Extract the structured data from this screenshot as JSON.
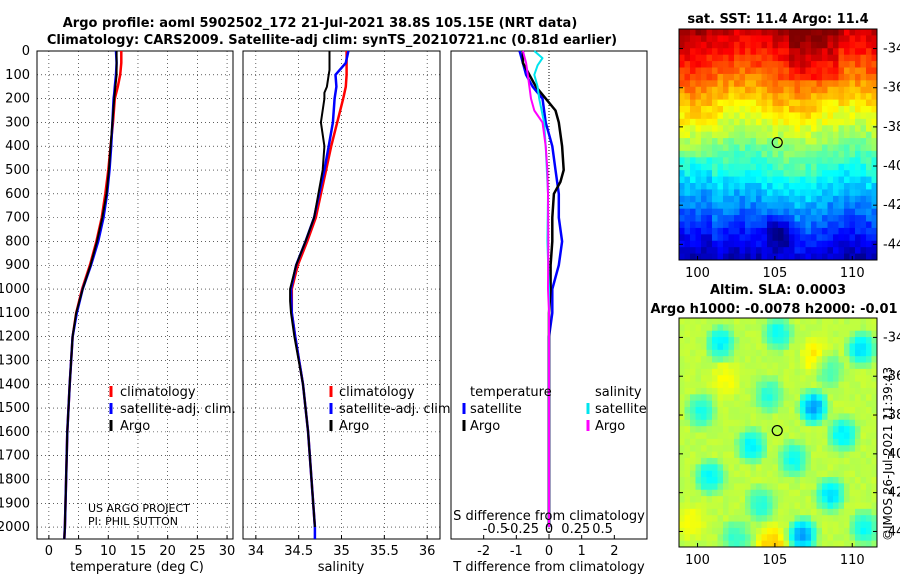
{
  "title": {
    "line1": "Argo profile: aoml 5902502_172 21-Jul-2021 38.8S 105.15E (NRT data)",
    "line2": "Climatology: CARS2009. Satellite-adj clim: synTS_20210721.nc (0.81d earlier)"
  },
  "depth_ticks": [
    "0",
    "100",
    "200",
    "300",
    "400",
    "500",
    "600",
    "700",
    "800",
    "900",
    "1000",
    "1100",
    "1200",
    "1300",
    "1400",
    "1500",
    "1600",
    "1700",
    "1800",
    "1900",
    "2000"
  ],
  "credits": {
    "line1": "US ARGO PROJECT",
    "line2": "PI: PHIL SUTTON"
  },
  "stamp": "©IMOS 26-Jul-2021 11:39:43",
  "colors": {
    "climatology": "#ff0000",
    "satellite_adj": "#0000ff",
    "argo": "#000000",
    "sat_temp": "#0000ff",
    "sat_sal": "#00e5ee",
    "argo_sal": "#ff00ff"
  },
  "chart_data": [
    {
      "type": "line",
      "name": "temperature-profile",
      "xlabel": "temperature (deg C)",
      "ylabel": "depth (m)",
      "xlim": [
        -2,
        31
      ],
      "ylim": [
        2050,
        0
      ],
      "xticks": [
        "0",
        "5",
        "10",
        "15",
        "20",
        "25",
        "30"
      ],
      "xtick_values": [
        0,
        5,
        10,
        15,
        20,
        25,
        30
      ],
      "legend": [
        "climatology",
        "satellite-adj. clim.",
        "Argo"
      ],
      "legend_position": "lower-right",
      "series": [
        {
          "name": "climatology",
          "depth": [
            0,
            50,
            100,
            150,
            180,
            200,
            300,
            400,
            500,
            600,
            700,
            800,
            900,
            1000,
            1100,
            1200,
            1400,
            1600,
            1800,
            2000,
            2050
          ],
          "values": [
            12.2,
            12.2,
            12.0,
            11.6,
            11.3,
            11.1,
            10.8,
            10.4,
            10.0,
            9.5,
            8.9,
            8.0,
            6.9,
            5.6,
            4.6,
            4.0,
            3.5,
            3.1,
            2.9,
            2.7,
            2.6
          ]
        },
        {
          "name": "satellite-adj. clim.",
          "depth": [
            0,
            50,
            100,
            150,
            180,
            200,
            300,
            400,
            500,
            600,
            700,
            800,
            900,
            1000,
            1100,
            1200,
            1400,
            1600,
            1800,
            2000,
            2050
          ],
          "values": [
            11.3,
            11.4,
            11.3,
            11.1,
            11.0,
            10.9,
            10.7,
            10.5,
            10.2,
            9.8,
            9.2,
            8.3,
            7.1,
            5.7,
            4.7,
            4.0,
            3.5,
            3.1,
            2.9,
            2.7,
            2.6
          ]
        },
        {
          "name": "Argo",
          "depth": [
            0,
            100,
            200,
            300,
            400,
            500,
            600,
            700,
            800,
            900,
            1000,
            1100,
            1200,
            1400,
            1600,
            1800,
            2000,
            2050
          ],
          "values": [
            11.4,
            11.4,
            11.0,
            10.7,
            10.4,
            10.1,
            9.7,
            9.0,
            8.1,
            7.0,
            5.7,
            4.6,
            4.0,
            3.5,
            3.1,
            2.9,
            2.7,
            2.6
          ]
        }
      ]
    },
    {
      "type": "line",
      "name": "salinity-profile",
      "xlabel": "salinity",
      "ylabel": "depth (m)",
      "xlim": [
        33.85,
        36.15
      ],
      "ylim": [
        2050,
        0
      ],
      "xticks": [
        "34",
        "34.5",
        "35",
        "35.5",
        "36"
      ],
      "xtick_values": [
        34,
        34.5,
        35,
        35.5,
        36
      ],
      "legend": [
        "climatology",
        "satellite-adj. clim.",
        "Argo"
      ],
      "legend_position": "lower-right",
      "series": [
        {
          "name": "climatology",
          "depth": [
            0,
            100,
            150,
            200,
            300,
            400,
            500,
            600,
            700,
            800,
            900,
            1000,
            1100,
            1200,
            1400,
            1600,
            1800,
            2000
          ],
          "values": [
            35.06,
            35.06,
            35.05,
            35.02,
            34.95,
            34.88,
            34.82,
            34.76,
            34.7,
            34.6,
            34.49,
            34.42,
            34.42,
            34.46,
            34.55,
            34.61,
            34.65,
            34.69
          ]
        },
        {
          "name": "satellite-adj. clim.",
          "depth": [
            0,
            50,
            100,
            150,
            200,
            300,
            400,
            500,
            600,
            700,
            800,
            900,
            1000,
            1100,
            1200,
            1400,
            1600,
            1800,
            2000,
            2050
          ],
          "values": [
            35.08,
            35.05,
            34.93,
            34.94,
            34.92,
            34.9,
            34.85,
            34.8,
            34.74,
            34.68,
            34.58,
            34.47,
            34.41,
            34.42,
            34.46,
            34.55,
            34.61,
            34.65,
            34.69,
            34.69
          ]
        },
        {
          "name": "Argo",
          "depth": [
            0,
            80,
            100,
            150,
            175,
            200,
            300,
            400,
            500,
            600,
            700,
            800,
            900,
            1000,
            1050,
            1100,
            1200,
            1400,
            1600,
            1800,
            2000
          ],
          "values": [
            34.86,
            34.86,
            34.85,
            34.83,
            34.8,
            34.8,
            34.76,
            34.8,
            34.78,
            34.73,
            34.68,
            34.58,
            34.47,
            34.4,
            34.4,
            34.41,
            34.45,
            34.55,
            34.61,
            34.65,
            34.69
          ]
        }
      ]
    },
    {
      "type": "line",
      "name": "difference-from-climatology",
      "xlabel": "T difference from climatology",
      "xlabel_top": "S difference from climatology",
      "xlim": [
        -3,
        3
      ],
      "ylim": [
        2050,
        0
      ],
      "xticks": [
        "-2",
        "-1",
        "0",
        "1",
        "2"
      ],
      "xtick_values": [
        -2,
        -1,
        0,
        1,
        2
      ],
      "s_xticks": [
        "-0.5",
        "-0.25",
        "0",
        "0.25",
        "0.5"
      ],
      "s_xtick_values": [
        -1.64,
        -0.82,
        0,
        0.82,
        1.64
      ],
      "legend_temperature": [
        "temperature",
        "satellite",
        "Argo"
      ],
      "legend_salinity": [
        "salinity",
        "satellite",
        "Argo"
      ],
      "series": [
        {
          "name": "temperature satellite",
          "depth": [
            0,
            50,
            100,
            150,
            200,
            300,
            400,
            500,
            600,
            700,
            800,
            900,
            1000,
            1100,
            1200,
            1400,
            1600,
            1800,
            2000
          ],
          "values": [
            -0.9,
            -0.8,
            -0.7,
            -0.5,
            -0.2,
            -0.1,
            0.1,
            0.2,
            0.3,
            0.3,
            0.4,
            0.3,
            0.1,
            0.1,
            0.0,
            0.0,
            0.0,
            0.0,
            0.0
          ]
        },
        {
          "name": "temperature Argo",
          "depth": [
            0,
            50,
            100,
            150,
            200,
            250,
            300,
            400,
            500,
            550,
            600,
            700,
            800,
            900,
            1000,
            1100,
            1200,
            1400,
            1600,
            1800,
            2000
          ],
          "values": [
            -0.8,
            -0.8,
            -0.6,
            -0.4,
            -0.1,
            0.2,
            0.3,
            0.4,
            0.45,
            0.35,
            0.15,
            0.1,
            0.1,
            0.05,
            0.05,
            0.0,
            0.0,
            0.0,
            0.0,
            0.0,
            0.0
          ]
        },
        {
          "name": "salinity satellite",
          "depth": [
            0,
            30,
            60,
            100,
            150,
            200,
            300,
            400,
            600,
            800,
            1000,
            1200,
            1400,
            1600,
            1800,
            2000
          ],
          "values": [
            -0.45,
            -0.2,
            -0.35,
            -0.45,
            -0.35,
            -0.3,
            -0.15,
            -0.1,
            -0.03,
            -0.05,
            0.0,
            0.0,
            0.0,
            0.0,
            0.0,
            0.0
          ]
        },
        {
          "name": "salinity Argo",
          "depth": [
            0,
            50,
            100,
            150,
            200,
            250,
            300,
            400,
            500,
            600,
            800,
            1000,
            1100,
            1200,
            1400,
            1600,
            1800,
            2000
          ],
          "values": [
            -0.8,
            -0.7,
            -0.65,
            -0.6,
            -0.55,
            -0.45,
            -0.2,
            -0.1,
            -0.05,
            -0.03,
            -0.02,
            -0.03,
            0.0,
            0.0,
            0.0,
            0.0,
            0.0,
            0.0
          ]
        }
      ]
    },
    {
      "type": "heatmap",
      "name": "sst-map",
      "title": "sat. SST: 11.4 Argo: 11.4",
      "xlim": [
        98.8,
        111.6
      ],
      "ylim": [
        -44.8,
        -33.0
      ],
      "xticks": [
        "100",
        "105",
        "110"
      ],
      "xtick_values": [
        100,
        105,
        110
      ],
      "yticks": [
        "-34",
        "-36",
        "-38",
        "-40",
        "-42",
        "-44"
      ],
      "ytick_values": [
        -34,
        -36,
        -38,
        -40,
        -42,
        -44
      ],
      "marker": {
        "lon": 105.15,
        "lat": -38.8
      }
    },
    {
      "type": "heatmap",
      "name": "sla-map",
      "title": "Altim. SLA: 0.0003",
      "subtitle": "Argo h1000: -0.0078 h2000: -0.01",
      "xlim": [
        98.8,
        111.6
      ],
      "ylim": [
        -44.8,
        -33.0
      ],
      "xticks": [
        "100",
        "105",
        "110"
      ],
      "xtick_values": [
        100,
        105,
        110
      ],
      "yticks": [
        "-34",
        "-36",
        "-38",
        "-40",
        "-42",
        "-44"
      ],
      "ytick_values": [
        -34,
        -36,
        -38,
        -40,
        -42,
        -44
      ],
      "marker": {
        "lon": 105.15,
        "lat": -38.8
      }
    }
  ]
}
